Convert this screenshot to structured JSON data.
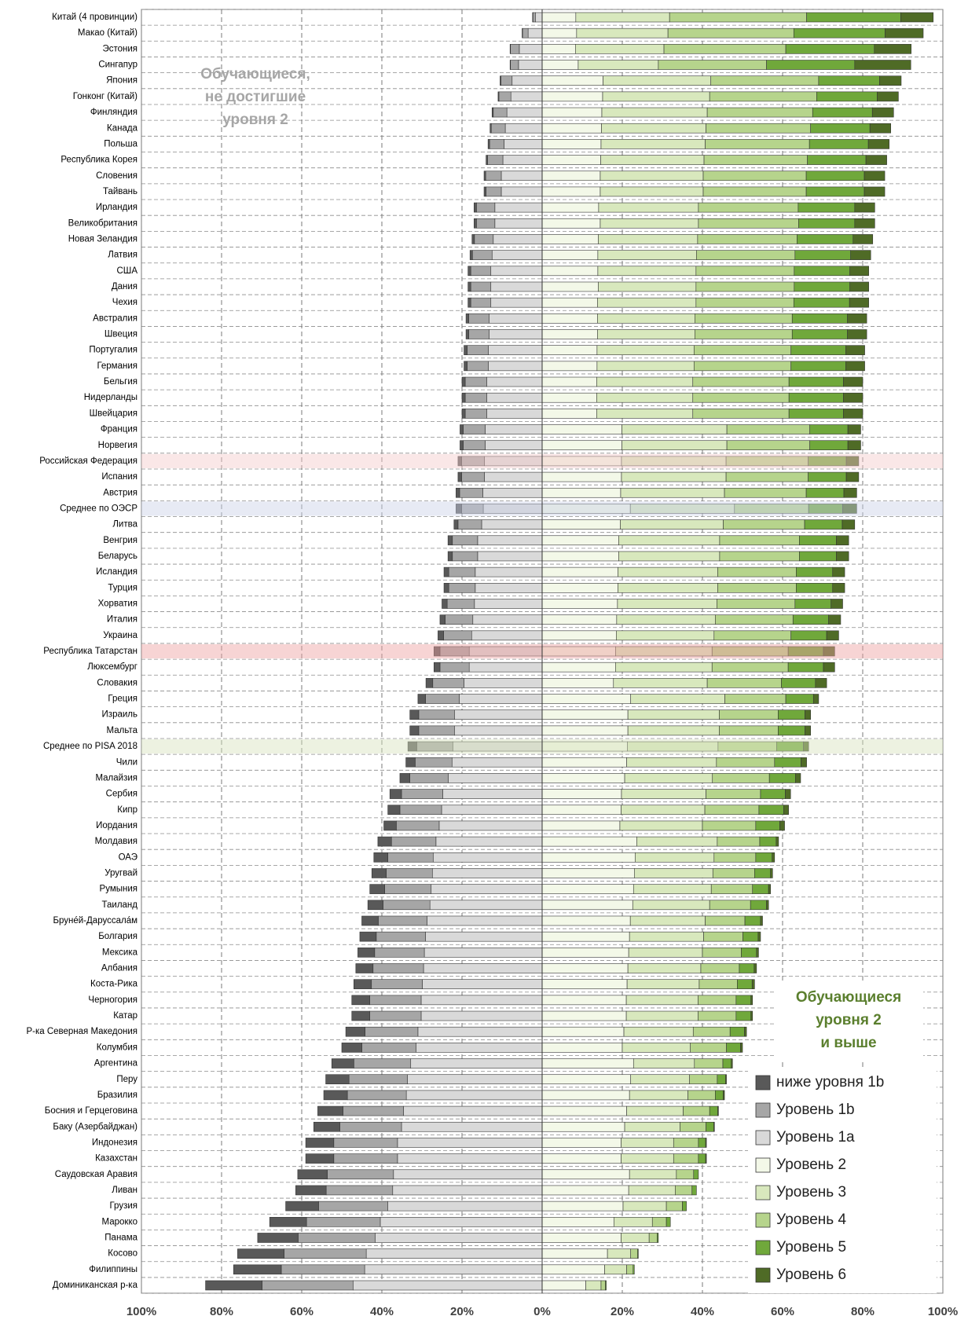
{
  "chart_data": {
    "type": "diverging_stacked_bar",
    "orientation": "horizontal",
    "annotations": [
      [
        "Обучающиеся,",
        "не достигшие",
        "уровня 2"
      ],
      [
        "Обучающиеся",
        "уровня 2",
        "и выше"
      ]
    ],
    "categories": [
      "Китай (4 провинции)",
      "Макао (Китай)",
      "Эстония",
      "Сингапур",
      "Япония",
      "Гонконг (Китай)",
      "Финляндия",
      "Канада",
      "Польша",
      "Республика Корея",
      "Словения",
      "Тайвань",
      "Ирландия",
      "Великобритания",
      "Новая Зеландия",
      "Латвия",
      "США",
      "Дания",
      "Чехия",
      "Австралия",
      "Швеция",
      "Португалия",
      "Германия",
      "Бельгия",
      "Нидерланды",
      "Швейцария",
      "Франция",
      "Норвегия",
      "Российская Федерация",
      "Испания",
      "Австрия",
      "Среднее по ОЭСР",
      "Литва",
      "Венгрия",
      "Беларусь",
      "Исландия",
      "Турция",
      "Хорватия",
      "Италия",
      "Украина",
      "Республика Татарстан",
      "Люксембург",
      "Словакия",
      "Греция",
      "Израиль",
      "Мальта",
      "Среднее по PISA 2018",
      "Чили",
      "Малайзия",
      "Сербия",
      "Кипр",
      "Иордания",
      "Молдавия",
      "ОАЭ",
      "Уругвай",
      "Румыния",
      "Таиланд",
      "Брунéй-Даруссалáм",
      "Болгария",
      "Мексика",
      "Албания",
      "Коста-Рика",
      "Черногория",
      "Катар",
      "Р-ка Северная Македония",
      "Колумбия",
      "Аргентина",
      "Перу",
      "Бразилия",
      "Босния и Герцеговина",
      "Баку (Азербайджан)",
      "Индонезия",
      "Казахстан",
      "Саудовская Аравия",
      "Ливан",
      "Грузия",
      "Марокко",
      "Панама",
      "Косово",
      "Филиппины",
      "Доминиканская р-ка"
    ],
    "series": [
      {
        "name": "ниже уровня 1b",
        "color": "#595959",
        "side": "left",
        "values": [
          0.1,
          0.1,
          0.1,
          0.1,
          0.2,
          0.2,
          0.3,
          0.3,
          0.4,
          0.4,
          0.4,
          0.5,
          0.6,
          0.6,
          0.6,
          0.6,
          0.7,
          0.7,
          0.7,
          0.7,
          0.7,
          0.8,
          0.8,
          0.8,
          0.8,
          0.8,
          0.8,
          0.8,
          0.9,
          0.9,
          0.9,
          1.4,
          1.0,
          1.1,
          1.1,
          1.2,
          1.2,
          1.3,
          1.3,
          1.4,
          1.5,
          1.5,
          1.7,
          1.9,
          2.2,
          2.2,
          2.2,
          2.3,
          2.5,
          2.9,
          3.0,
          3.1,
          3.4,
          3.5,
          3.6,
          3.7,
          3.8,
          4.1,
          4.1,
          4.2,
          4.3,
          4.4,
          4.5,
          4.5,
          4.8,
          5.0,
          5.5,
          5.8,
          5.9,
          6.3,
          6.5,
          7.0,
          7.0,
          7.4,
          7.6,
          8.2,
          9.2,
          10.1,
          11.6,
          11.9,
          14.1
        ]
      },
      {
        "name": "Уровень 1b",
        "color": "#a6a6a6",
        "side": "left",
        "values": [
          0.6,
          1.4,
          2.2,
          2.0,
          2.8,
          3.0,
          3.4,
          3.5,
          3.6,
          3.8,
          3.9,
          3.8,
          4.6,
          4.6,
          4.7,
          4.9,
          5.0,
          5.0,
          5.0,
          5.1,
          5.1,
          5.3,
          5.3,
          5.4,
          5.4,
          5.4,
          5.5,
          5.5,
          5.7,
          5.7,
          5.8,
          5.4,
          5.9,
          6.3,
          6.3,
          6.6,
          6.6,
          6.8,
          6.9,
          7.0,
          7.3,
          7.3,
          7.8,
          8.4,
          8.9,
          8.9,
          9.0,
          9.2,
          9.6,
          10.3,
          10.4,
          10.7,
          11.1,
          11.3,
          11.5,
          11.6,
          11.7,
          12.2,
          12.3,
          12.4,
          12.6,
          12.7,
          12.8,
          12.8,
          13.2,
          13.5,
          14.2,
          14.6,
          14.7,
          15.1,
          15.4,
          15.9,
          15.9,
          16.5,
          16.6,
          17.3,
          18.4,
          19.2,
          20.5,
          20.8,
          22.7
        ]
      },
      {
        "name": "Уровень 1а",
        "color": "#d9d9d9",
        "side": "left",
        "values": [
          1.7,
          3.5,
          5.7,
          5.9,
          7.5,
          7.8,
          8.8,
          9.2,
          9.5,
          9.8,
          10.2,
          10.2,
          11.8,
          11.8,
          12.2,
          12.5,
          12.8,
          12.8,
          12.8,
          13.2,
          13.2,
          13.4,
          13.4,
          13.8,
          13.8,
          13.8,
          14.2,
          14.2,
          14.4,
          14.4,
          14.8,
          14.7,
          15.1,
          16.1,
          16.1,
          16.7,
          16.7,
          16.9,
          17.3,
          17.6,
          18.2,
          18.2,
          19.5,
          20.7,
          21.9,
          21.9,
          22.3,
          22.5,
          23.4,
          24.8,
          25.1,
          25.7,
          26.5,
          27.2,
          27.4,
          27.7,
          28.0,
          28.7,
          29.1,
          29.4,
          29.6,
          29.9,
          30.2,
          30.2,
          31.0,
          31.5,
          32.8,
          33.6,
          33.9,
          34.6,
          35.1,
          36.1,
          36.1,
          37.1,
          37.3,
          38.5,
          40.4,
          41.7,
          43.9,
          44.3,
          47.2
        ]
      },
      {
        "name": "Уровень 2",
        "color": "#f3f8e8",
        "side": "right",
        "values": [
          8.4,
          8.6,
          8.3,
          9.0,
          15.2,
          15.1,
          14.9,
          14.8,
          14.7,
          14.6,
          14.5,
          14.5,
          14.1,
          14.5,
          14.0,
          13.9,
          13.9,
          14.0,
          13.8,
          13.8,
          13.8,
          13.7,
          13.7,
          13.6,
          13.6,
          13.6,
          19.9,
          19.9,
          19.8,
          19.8,
          19.6,
          22.0,
          19.5,
          19.1,
          19.1,
          18.9,
          18.9,
          18.8,
          18.6,
          18.5,
          18.3,
          18.3,
          17.8,
          22.1,
          21.4,
          21.4,
          21.3,
          21.1,
          20.6,
          19.8,
          19.7,
          19.4,
          23.6,
          23.2,
          23.0,
          22.8,
          22.6,
          22.0,
          21.8,
          21.6,
          21.4,
          21.2,
          21.0,
          21.0,
          20.4,
          20.0,
          22.8,
          22.1,
          21.8,
          21.1,
          20.6,
          19.7,
          19.7,
          21.8,
          21.6,
          20.2,
          17.9,
          19.7,
          16.3,
          15.6,
          10.9
        ]
      },
      {
        "name": "Уровень 3",
        "color": "#d8e8bd",
        "side": "right",
        "values": [
          23.4,
          22.8,
          22.1,
          20.0,
          26.9,
          26.7,
          26.3,
          26.1,
          26.0,
          25.8,
          25.7,
          25.7,
          24.9,
          24.5,
          24.8,
          24.6,
          24.5,
          24.4,
          24.6,
          24.3,
          24.3,
          24.2,
          24.2,
          24.0,
          24.0,
          24.0,
          26.2,
          26.2,
          26.1,
          26.1,
          25.9,
          26.0,
          25.7,
          25.2,
          25.2,
          24.9,
          24.9,
          24.8,
          24.6,
          24.4,
          24.1,
          24.1,
          23.4,
          23.5,
          22.8,
          22.8,
          22.6,
          22.4,
          21.9,
          21.1,
          20.9,
          20.6,
          20.1,
          19.7,
          19.6,
          19.4,
          19.2,
          18.7,
          18.5,
          18.4,
          18.2,
          18.0,
          17.9,
          17.9,
          17.3,
          17.0,
          15.2,
          14.7,
          14.6,
          14.1,
          13.8,
          13.1,
          13.1,
          11.7,
          11.6,
          10.8,
          9.6,
          7.0,
          5.8,
          5.5,
          3.8
        ]
      },
      {
        "name": "Уровень 4",
        "color": "#b6d48c",
        "side": "right",
        "values": [
          34.2,
          31.4,
          30.4,
          27.0,
          26.9,
          26.7,
          26.3,
          26.1,
          26.0,
          25.8,
          25.7,
          25.7,
          24.9,
          25.0,
          24.8,
          24.6,
          24.5,
          24.5,
          24.4,
          24.3,
          24.3,
          24.2,
          24.2,
          24.0,
          24.0,
          24.0,
          20.7,
          20.7,
          20.5,
          20.5,
          20.4,
          18.5,
          20.3,
          19.9,
          19.9,
          19.6,
          19.6,
          19.5,
          19.4,
          19.2,
          19.0,
          19.0,
          18.5,
          15.2,
          14.7,
          14.7,
          14.6,
          14.5,
          14.2,
          13.6,
          13.5,
          13.3,
          10.6,
          10.4,
          10.4,
          10.3,
          10.2,
          9.9,
          9.8,
          9.7,
          9.6,
          9.5,
          9.5,
          9.5,
          9.2,
          9.0,
          7.1,
          6.9,
          6.8,
          6.6,
          6.5,
          6.2,
          6.2,
          4.3,
          4.2,
          4.0,
          3.5,
          2.0,
          1.7,
          1.6,
          1.1
        ]
      },
      {
        "name": "Уровень 5",
        "color": "#70a83b",
        "side": "right",
        "values": [
          23.5,
          22.8,
          22.1,
          22.0,
          15.2,
          15.1,
          14.9,
          14.8,
          14.7,
          14.6,
          14.5,
          14.5,
          14.1,
          14.0,
          14.0,
          13.9,
          13.9,
          13.9,
          13.9,
          13.8,
          13.8,
          13.7,
          13.7,
          13.6,
          13.6,
          13.6,
          9.5,
          9.5,
          9.5,
          9.5,
          9.4,
          8.5,
          9.4,
          9.2,
          9.2,
          9.1,
          9.1,
          9.0,
          8.9,
          8.9,
          8.8,
          8.8,
          8.5,
          6.9,
          6.7,
          6.7,
          6.7,
          6.6,
          6.5,
          6.2,
          6.2,
          6.0,
          4.1,
          4.1,
          4.0,
          4.0,
          4.0,
          3.9,
          3.8,
          3.8,
          3.7,
          3.7,
          3.7,
          3.7,
          3.6,
          3.5,
          2.1,
          2.1,
          2.0,
          2.0,
          1.9,
          1.8,
          1.8,
          1.2,
          1.1,
          1.0,
          1.0,
          0.3,
          0.2,
          0.3,
          0.2
        ]
      },
      {
        "name": "Уровень 6",
        "color": "#4f6b26",
        "side": "right",
        "values": [
          8.1,
          9.5,
          9.2,
          14.0,
          5.4,
          5.3,
          5.3,
          5.2,
          5.2,
          5.2,
          5.1,
          5.1,
          5.0,
          5.0,
          4.9,
          5.0,
          4.7,
          4.7,
          4.8,
          4.8,
          4.8,
          4.7,
          4.7,
          4.8,
          4.8,
          4.8,
          3.2,
          3.2,
          3.1,
          3.1,
          3.2,
          3.5,
          3.1,
          3.1,
          3.1,
          3.0,
          3.0,
          2.9,
          3.0,
          3.0,
          2.8,
          2.8,
          2.8,
          1.3,
          1.4,
          1.4,
          1.3,
          1.4,
          1.3,
          1.3,
          1.2,
          1.2,
          0.6,
          0.6,
          0.5,
          0.5,
          0.5,
          0.5,
          0.6,
          0.5,
          0.6,
          0.6,
          0.4,
          0.4,
          0.5,
          0.5,
          0.3,
          0.2,
          0.3,
          0.2,
          0.2,
          0.2,
          0.2,
          0,
          0,
          0,
          0,
          0,
          0,
          0,
          0
        ]
      }
    ],
    "xlim": [
      -100,
      100
    ],
    "xticks": [
      {
        "value": -100,
        "label": "100%"
      },
      {
        "value": -80,
        "label": "80%"
      },
      {
        "value": -60,
        "label": "60%"
      },
      {
        "value": -40,
        "label": "40%"
      },
      {
        "value": -20,
        "label": "20%"
      },
      {
        "value": 0,
        "label": "0%"
      },
      {
        "value": 20,
        "label": "20%"
      },
      {
        "value": 40,
        "label": "40%"
      },
      {
        "value": 60,
        "label": "60%"
      },
      {
        "value": 80,
        "label": "80%"
      },
      {
        "value": 100,
        "label": "100%"
      }
    ],
    "grid": true,
    "legend_position": "lower right",
    "highlights": [
      {
        "row": 28,
        "color": "#f3c9c9"
      },
      {
        "row": 31,
        "color": "#c9d0e6"
      },
      {
        "row": 40,
        "color": "#ee9f9f"
      },
      {
        "row": 46,
        "color": "#d6e2bd"
      }
    ]
  }
}
